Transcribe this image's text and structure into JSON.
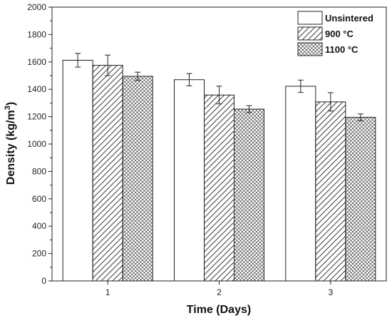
{
  "chart_data": {
    "type": "bar",
    "categories": [
      "1",
      "2",
      "3"
    ],
    "series": [
      {
        "name": "Unsintered",
        "values": [
          1612,
          1470,
          1422
        ],
        "errors": [
          50,
          45,
          45
        ],
        "pattern": "solid"
      },
      {
        "name": "900 °C",
        "values": [
          1575,
          1358,
          1308
        ],
        "errors": [
          75,
          65,
          67
        ],
        "pattern": "diagonal-hatch"
      },
      {
        "name": "1100 °C",
        "values": [
          1495,
          1255,
          1195
        ],
        "errors": [
          30,
          25,
          25
        ],
        "pattern": "cross-hatch"
      }
    ],
    "title": "",
    "xlabel": "Time (Days)",
    "ylabel_main": "Density (kg/m",
    "ylabel_sup": "3",
    "ylabel_close": ")",
    "ylim": [
      0,
      2000
    ],
    "yticks": [
      0,
      200,
      400,
      600,
      800,
      1000,
      1200,
      1400,
      1600,
      1800,
      2000
    ],
    "grid": false,
    "legend_position": "top-right",
    "colors": {
      "bar_fill": "#ffffff",
      "bar_stroke": "#222222",
      "axis": "#222222"
    }
  }
}
